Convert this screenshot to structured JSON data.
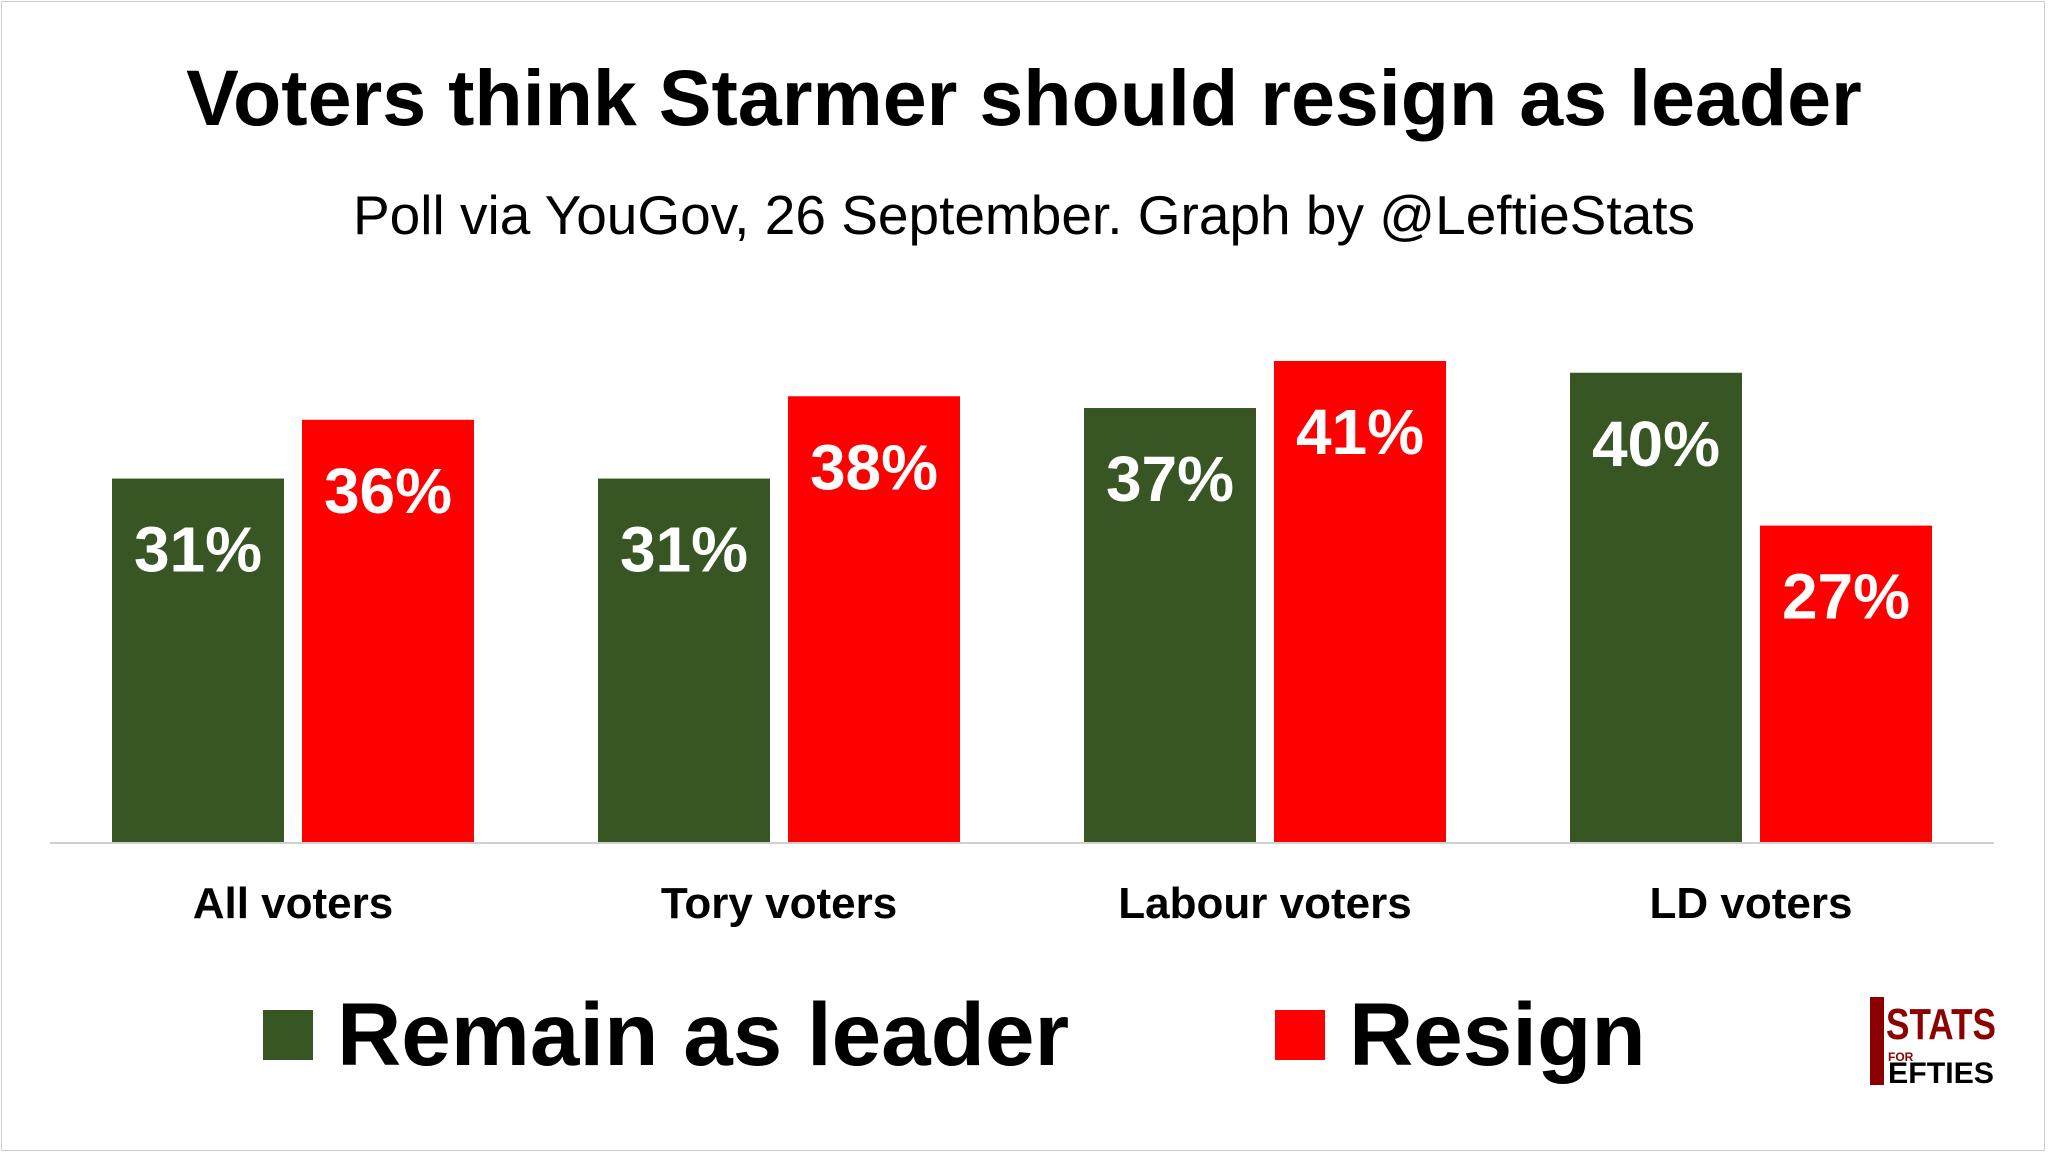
{
  "chart_data": {
    "type": "bar",
    "title": "Voters think Starmer should resign as leader",
    "subtitle": "Poll via YouGov, 26 September. Graph by @LeftieStats",
    "categories": [
      "All voters",
      "Tory voters",
      "Labour voters",
      "LD voters"
    ],
    "series": [
      {
        "name": "Remain as leader",
        "color": "#375623",
        "values": [
          31,
          31,
          37,
          40
        ],
        "labels": [
          "31%",
          "31%",
          "37%",
          "40%"
        ]
      },
      {
        "name": "Resign",
        "color": "#ff0000",
        "values": [
          36,
          38,
          41,
          27
        ],
        "labels": [
          "36%",
          "38%",
          "41%",
          "27%"
        ]
      }
    ],
    "ylim": [
      0,
      41
    ],
    "grid": false,
    "legend_position": "bottom"
  },
  "logo": {
    "text_top": "STATS",
    "text_small": "FOR",
    "text_bottom": "EFTIES",
    "letter_l": "L"
  }
}
